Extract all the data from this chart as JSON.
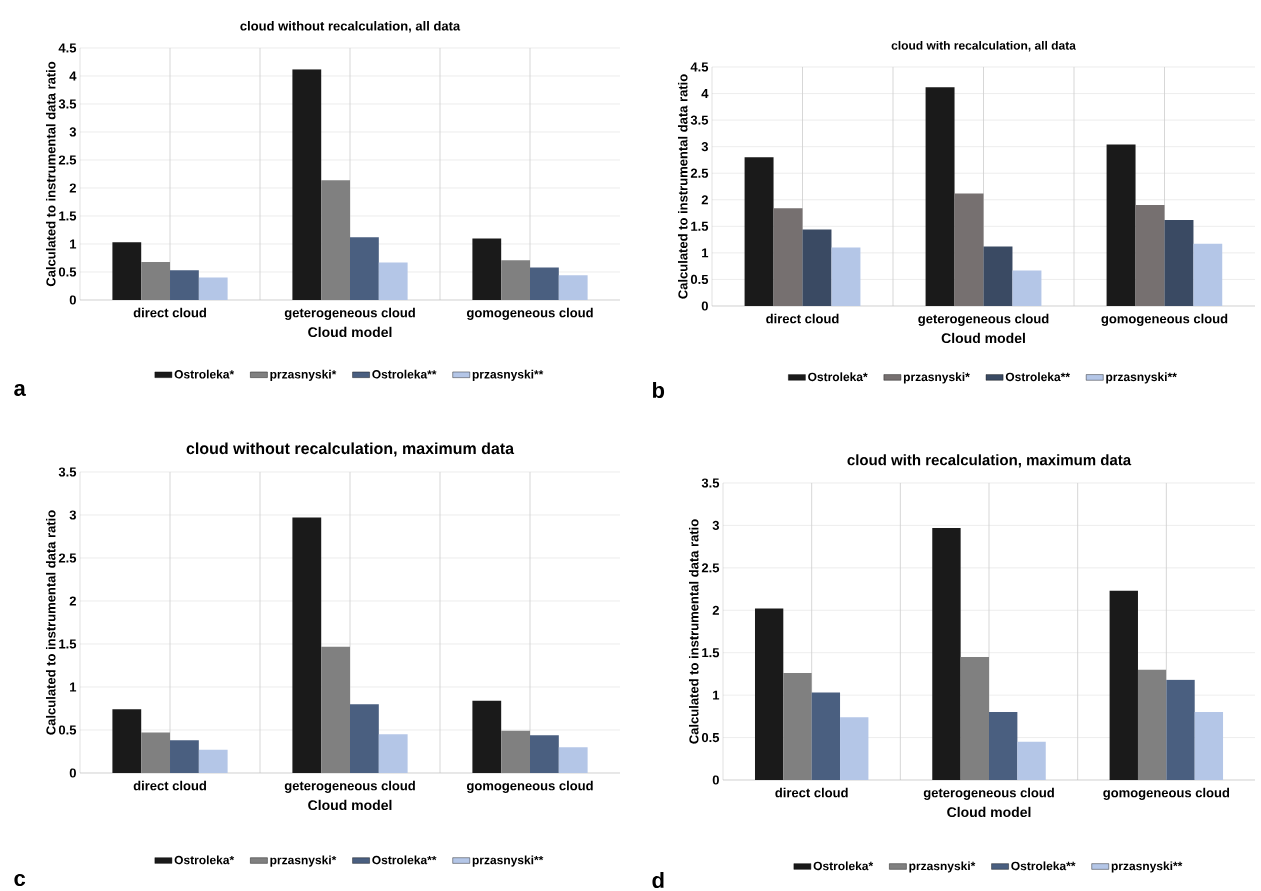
{
  "chart_data": [
    {
      "type": "bar",
      "title": "cloud without recalculation, all data",
      "xlabel": "Cloud model",
      "ylabel": "Calculated to instrumental data ratio",
      "categories": [
        "direct  cloud",
        "geterogeneous cloud",
        "gomogeneous cloud"
      ],
      "ylim": [
        0,
        4.5
      ],
      "yticks": [
        0,
        0.5,
        1,
        1.5,
        2,
        2.5,
        3,
        3.5,
        4,
        4.5
      ],
      "grid": true,
      "legend": "bottom",
      "annotations": [
        "a"
      ],
      "series": [
        {
          "name": "Ostroleka*",
          "color": "#1a1a1a",
          "values": [
            1.03,
            4.12,
            1.1
          ]
        },
        {
          "name": "przasnyski*",
          "color": "#808080",
          "values": [
            0.68,
            2.14,
            0.71
          ]
        },
        {
          "name": "Ostroleka**",
          "color": "#4a5f80",
          "values": [
            0.53,
            1.12,
            0.58
          ]
        },
        {
          "name": "przasnyski**",
          "color": "#b4c6e7",
          "values": [
            0.4,
            0.67,
            0.44
          ]
        }
      ]
    },
    {
      "type": "bar",
      "title": "cloud with recalculation, all data",
      "xlabel": "Cloud model",
      "ylabel": "Calculated to instrumental data ratio",
      "categories": [
        "direct  cloud",
        "geterogeneous cloud",
        "gomogeneous cloud"
      ],
      "ylim": [
        0,
        4.5
      ],
      "yticks": [
        0,
        0.5,
        1,
        1.5,
        2,
        2.5,
        3,
        3.5,
        4,
        4.5
      ],
      "grid": true,
      "legend": "bottom",
      "annotations": [
        "b"
      ],
      "series": [
        {
          "name": "Ostroleka*",
          "color": "#1a1a1a",
          "values": [
            2.8,
            4.12,
            3.04
          ]
        },
        {
          "name": "przasnyski*",
          "color": "#767070",
          "values": [
            1.84,
            2.12,
            1.9
          ]
        },
        {
          "name": "Ostroleka**",
          "color": "#3a4a63",
          "values": [
            1.44,
            1.12,
            1.62
          ]
        },
        {
          "name": "przasnyski**",
          "color": "#b4c6e7",
          "values": [
            1.1,
            0.67,
            1.17
          ]
        }
      ]
    },
    {
      "type": "bar",
      "title": "cloud without recalculation, maximum data",
      "xlabel": "Cloud model",
      "ylabel": "Calculated to instrumental data ratio",
      "categories": [
        "direct  cloud",
        "geterogeneous cloud",
        "gomogeneous cloud"
      ],
      "ylim": [
        0,
        3.5
      ],
      "yticks": [
        0,
        0.5,
        1,
        1.5,
        2,
        2.5,
        3,
        3.5
      ],
      "grid": true,
      "legend": "bottom",
      "annotations": [
        "c"
      ],
      "series": [
        {
          "name": "Ostroleka*",
          "color": "#1a1a1a",
          "values": [
            0.74,
            2.97,
            0.84
          ]
        },
        {
          "name": "przasnyski*",
          "color": "#808080",
          "values": [
            0.47,
            1.47,
            0.49
          ]
        },
        {
          "name": "Ostroleka**",
          "color": "#4a5f80",
          "values": [
            0.38,
            0.8,
            0.44
          ]
        },
        {
          "name": "przasnyski**",
          "color": "#b4c6e7",
          "values": [
            0.27,
            0.45,
            0.3
          ]
        }
      ]
    },
    {
      "type": "bar",
      "title": "cloud with recalculation, maximum data",
      "xlabel": "Cloud model",
      "ylabel": "Calculated to instrumental data ratio",
      "categories": [
        "direct  cloud",
        "geterogeneous cloud",
        "gomogeneous cloud"
      ],
      "ylim": [
        0,
        3.5
      ],
      "yticks": [
        0,
        0.5,
        1,
        1.5,
        2,
        2.5,
        3,
        3.5
      ],
      "grid": true,
      "legend": "bottom",
      "annotations": [
        "d"
      ],
      "series": [
        {
          "name": "Ostroleka*",
          "color": "#1a1a1a",
          "values": [
            2.02,
            2.97,
            2.23
          ]
        },
        {
          "name": "przasnyski*",
          "color": "#808080",
          "values": [
            1.26,
            1.45,
            1.3
          ]
        },
        {
          "name": "Ostroleka**",
          "color": "#4a5f80",
          "values": [
            1.03,
            0.8,
            1.18
          ]
        },
        {
          "name": "przasnyski**",
          "color": "#b4c6e7",
          "values": [
            0.74,
            0.45,
            0.8
          ]
        }
      ]
    }
  ]
}
